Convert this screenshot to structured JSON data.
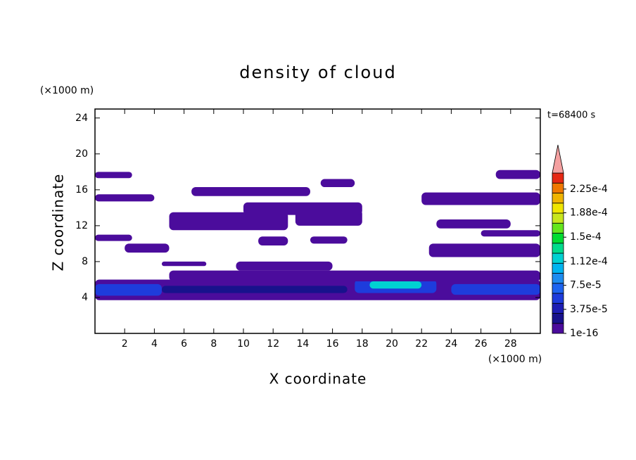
{
  "chart_data": {
    "type": "contour",
    "title": "density of cloud",
    "time_label": "t=68400 s",
    "xlabel": "X coordinate",
    "ylabel": "Z coordinate",
    "x_unit": "(×1000 m)",
    "y_unit": "(×1000 m)",
    "xlim": [
      0,
      30
    ],
    "ylim": [
      0,
      25
    ],
    "xticks": [
      2,
      4,
      6,
      8,
      10,
      12,
      14,
      16,
      18,
      20,
      22,
      24,
      26,
      28
    ],
    "yticks": [
      4,
      8,
      12,
      16,
      20,
      24
    ],
    "colorbar": {
      "clim": [
        0,
        0.00025
      ],
      "colors": [
        "#4b0c9c",
        "#18128c",
        "#1e1eb4",
        "#1e3cdc",
        "#1e64f0",
        "#1e8cf0",
        "#00b4f0",
        "#00d2d2",
        "#00dc8c",
        "#00dc32",
        "#64e61e",
        "#c8e61e",
        "#f0e600",
        "#f0b400",
        "#f07800",
        "#e62814"
      ],
      "extend_color": "#f4a0a0",
      "ticks": [
        {
          "value": 1e-16,
          "label": "1e-16"
        },
        {
          "value": 3.75e-05,
          "label": "3.75e-5"
        },
        {
          "value": 7.5e-05,
          "label": "7.5e-5"
        },
        {
          "value": 0.000112,
          "label": "1.12e-4"
        },
        {
          "value": 0.00015,
          "label": "1.5e-4"
        },
        {
          "value": 0.000188,
          "label": "1.88e-4"
        },
        {
          "value": 0.000225,
          "label": "2.25e-4"
        }
      ]
    },
    "regions": [
      {
        "x": [
          0,
          30
        ],
        "z": [
          3.7,
          6.0
        ],
        "value": 5e-06
      },
      {
        "x": [
          0,
          4.5
        ],
        "z": [
          4.2,
          5.5
        ],
        "value": 6e-05
      },
      {
        "x": [
          4.5,
          17
        ],
        "z": [
          4.5,
          5.3
        ],
        "value": 3e-05
      },
      {
        "x": [
          17.5,
          23
        ],
        "z": [
          4.5,
          6.0
        ],
        "value": 6e-05
      },
      {
        "x": [
          18.5,
          22
        ],
        "z": [
          5.0,
          5.8
        ],
        "value": 0.00011
      },
      {
        "x": [
          24,
          30
        ],
        "z": [
          4.3,
          5.5
        ],
        "value": 6e-05
      },
      {
        "x": [
          5,
          30
        ],
        "z": [
          5.8,
          7.0
        ],
        "value": 5e-06
      },
      {
        "x": [
          9.5,
          16
        ],
        "z": [
          7.0,
          8.0
        ],
        "value": 5e-06
      },
      {
        "x": [
          4.5,
          7.5
        ],
        "z": [
          7.5,
          8.0
        ],
        "value": 5e-06
      },
      {
        "x": [
          2,
          5
        ],
        "z": [
          9.0,
          10.0
        ],
        "value": 5e-06
      },
      {
        "x": [
          22.5,
          30
        ],
        "z": [
          8.5,
          10.0
        ],
        "value": 5e-06
      },
      {
        "x": [
          0,
          2.5
        ],
        "z": [
          10.3,
          11.0
        ],
        "value": 5e-06
      },
      {
        "x": [
          11,
          13
        ],
        "z": [
          9.8,
          10.8
        ],
        "value": 5e-06
      },
      {
        "x": [
          14.5,
          17
        ],
        "z": [
          10.0,
          10.8
        ],
        "value": 5e-06
      },
      {
        "x": [
          26,
          30
        ],
        "z": [
          10.8,
          11.5
        ],
        "value": 5e-06
      },
      {
        "x": [
          5,
          13
        ],
        "z": [
          11.5,
          13.5
        ],
        "value": 5e-06
      },
      {
        "x": [
          13.5,
          18
        ],
        "z": [
          12.0,
          13.8
        ],
        "value": 5e-06
      },
      {
        "x": [
          23,
          28
        ],
        "z": [
          11.7,
          12.7
        ],
        "value": 5e-06
      },
      {
        "x": [
          0,
          4
        ],
        "z": [
          14.7,
          15.5
        ],
        "value": 5e-06
      },
      {
        "x": [
          10,
          18
        ],
        "z": [
          13.2,
          14.6
        ],
        "value": 5e-06
      },
      {
        "x": [
          22,
          30
        ],
        "z": [
          14.3,
          15.7
        ],
        "value": 5e-06
      },
      {
        "x": [
          6.5,
          14.5
        ],
        "z": [
          15.3,
          16.3
        ],
        "value": 5e-06
      },
      {
        "x": [
          15.2,
          17.5
        ],
        "z": [
          16.3,
          17.2
        ],
        "value": 5e-06
      },
      {
        "x": [
          0,
          2.5
        ],
        "z": [
          17.3,
          18.0
        ],
        "value": 5e-06
      },
      {
        "x": [
          27,
          30
        ],
        "z": [
          17.2,
          18.2
        ],
        "value": 5e-06
      }
    ]
  }
}
